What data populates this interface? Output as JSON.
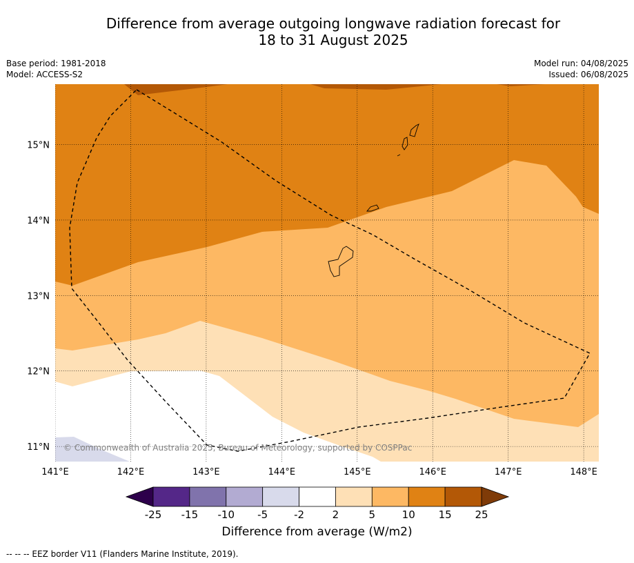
{
  "title": {
    "line1": "Difference from average outgoing longwave radiation forecast for",
    "line2": "18 to 31 August 2025"
  },
  "meta_left": {
    "base_period": "Base period: 1981-2018",
    "model": "Model: ACCESS-S2"
  },
  "meta_right": {
    "model_run": "Model run: 04/08/2025",
    "issued": "Issued: 06/08/2025"
  },
  "map": {
    "lon_range": [
      141.0,
      148.2
    ],
    "lat_range": [
      10.8,
      15.8
    ],
    "lon_ticks": [
      141,
      142,
      143,
      144,
      145,
      146,
      147,
      148
    ],
    "lon_labels": [
      "141°E",
      "142°E",
      "143°E",
      "144°E",
      "145°E",
      "146°E",
      "147°E",
      "148°E"
    ],
    "lat_ticks": [
      11,
      12,
      13,
      14,
      15
    ],
    "lat_labels": [
      "11°N",
      "12°N",
      "13°N",
      "14°N",
      "15°N"
    ],
    "copyright": "© Commonwealth of Australia 2025, Bureau of Meteorology, supported by COSPPac"
  },
  "colorbar": {
    "labels": [
      "-25",
      "-15",
      "-10",
      "-5",
      "-2",
      "2",
      "5",
      "10",
      "15",
      "25"
    ],
    "colors": [
      "#2d004b",
      "#542788",
      "#8073ac",
      "#b2abd2",
      "#d8daeb",
      "#ffffff",
      "#fee0b6",
      "#fdb863",
      "#e08214",
      "#b35806",
      "#7f3b08"
    ],
    "title": "Difference from average (W/m2)"
  },
  "footnote": "-- -- -- EEZ border V11 (Flanders Marine Institute, 2019)."
}
